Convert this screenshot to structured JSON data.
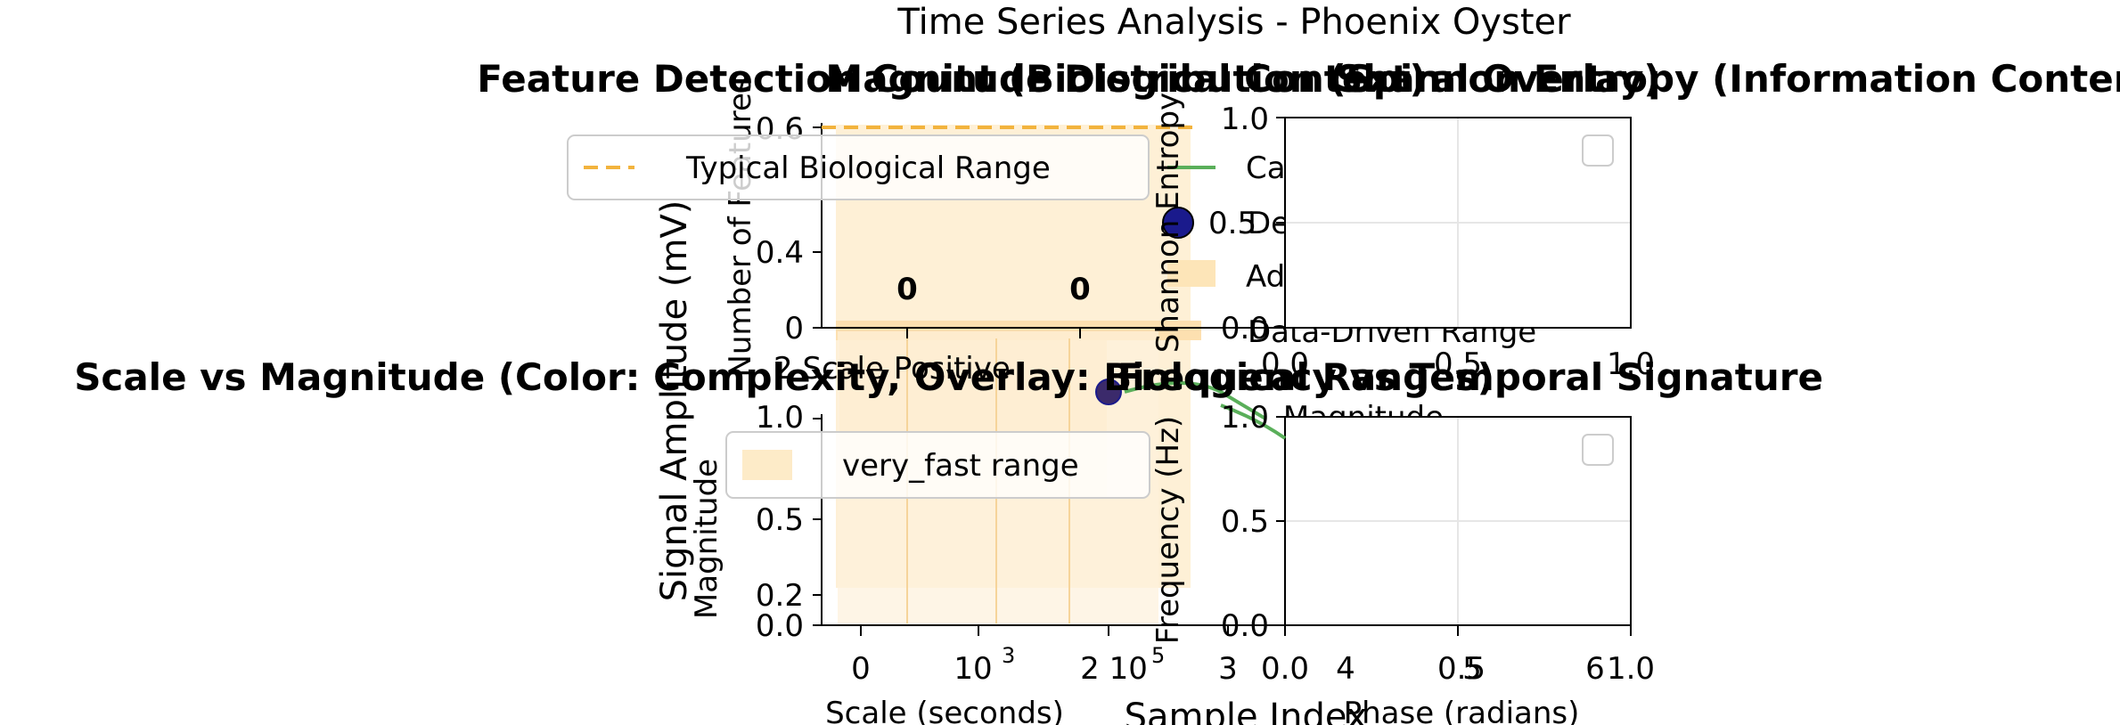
{
  "figure": {
    "suptitle": "Time Series Analysis - Phoenix Oyster",
    "big_ylabel": "Signal Amplitude (mV)",
    "big_xlabel": "Sample Index"
  },
  "chart_data": [
    {
      "id": "feature-detection",
      "type": "bar",
      "title": "Feature Detection Count (Biological Context)",
      "ylabel": "Number of Features",
      "ylim": [
        0,
        0.6
      ],
      "yticks": [
        "0",
        "0.4",
        "0.6"
      ],
      "categories": [
        "",
        ""
      ],
      "values": [
        0,
        0
      ],
      "value_labels": [
        "0",
        "0"
      ],
      "reference_line": {
        "name": "Typical Biological Range",
        "value": 0.6,
        "color": "#f2b33d"
      },
      "legend": [
        "Typical Biological Range"
      ]
    },
    {
      "id": "magnitude-distribution",
      "type": "line",
      "title": "Magnitude Distribution (Spiral Overlay)",
      "legend": [
        "Ca",
        "De",
        "Ad",
        "Data-Driven Range"
      ],
      "series_color": "#5aaf5a",
      "marker_color": "#1a1a8c",
      "visible_ytick": "0.5",
      "xlabel_fragment": "Magnitude"
    },
    {
      "id": "shannon-entropy",
      "type": "line",
      "title": "Shannon Entropy (Information Content)",
      "ylabel": "Shannon Entropy",
      "ylim": [
        0,
        1
      ],
      "yticks": [
        "0.0",
        "0.5",
        "1.0"
      ],
      "xlim": [
        0,
        1
      ],
      "xticks": [
        "0.0",
        "0.5",
        "1.0"
      ],
      "grid": true
    },
    {
      "id": "scale-vs-magnitude",
      "type": "scatter",
      "title": "Scale vs Magnitude (Color: Complexity, Overlay: Biological Ranges)",
      "xlabel": "Scale (seconds)",
      "ylabel": "Magnitude",
      "ylim": [
        0,
        1
      ],
      "yticks": [
        "0.0",
        "0.2",
        "0.5",
        "1.0"
      ],
      "xticks": [
        "0",
        "10",
        "2 10",
        "3"
      ],
      "xtick_exponents": [
        "3",
        "5"
      ],
      "legend": [
        "very_fast range"
      ],
      "point": {
        "x": 2,
        "y": 1.0,
        "color": "#3b2a6b"
      },
      "overlay_color": "#fdebc8",
      "line_color": "#5aaf5a",
      "overlap_tick_text": "2 Scale Positive"
    },
    {
      "id": "frequency-temporal",
      "type": "line",
      "title": "Frequency vs Temporal Signature",
      "ylabel": "Frequency (Hz)",
      "xlabel": "Phase (radians)",
      "ylim": [
        0,
        1
      ],
      "yticks": [
        "0.0",
        "0.5",
        "1.0"
      ],
      "xlim": [
        0,
        1
      ],
      "xticks": [
        "0.0",
        "0.5",
        "1.0"
      ],
      "extra_xticks": [
        "4",
        "5",
        "6"
      ],
      "grid": true
    }
  ]
}
